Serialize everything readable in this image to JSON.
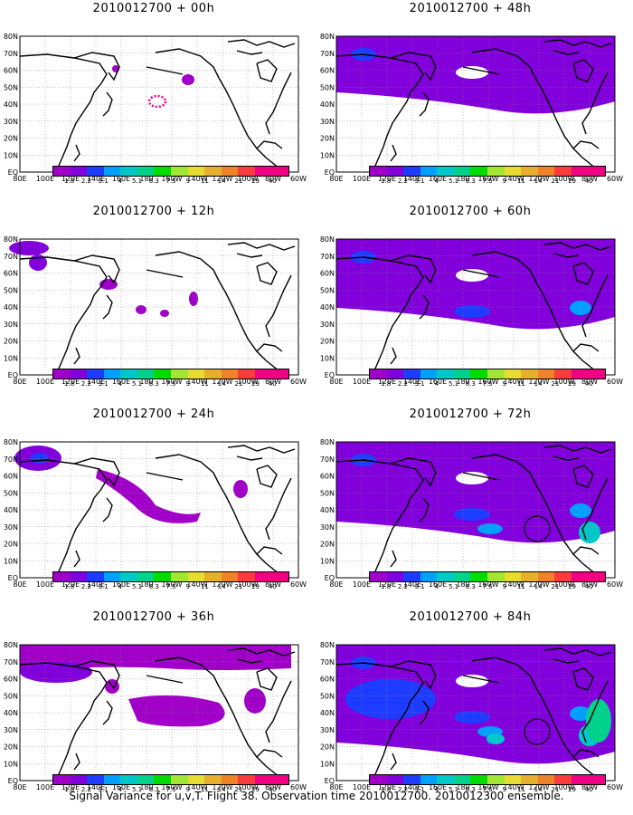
{
  "panels": [
    {
      "title": "2010012700 + 00h",
      "level": 0
    },
    {
      "title": "2010012700 + 12h",
      "level": 1
    },
    {
      "title": "2010012700 + 24h",
      "level": 2
    },
    {
      "title": "2010012700 + 36h",
      "level": 3
    },
    {
      "title": "2010012700 + 48h",
      "level": 4
    },
    {
      "title": "2010012700 + 60h",
      "level": 5
    },
    {
      "title": "2010012700 + 72h",
      "level": 6
    },
    {
      "title": "2010012700 + 84h",
      "level": 7
    }
  ],
  "lat_labels": [
    "80N",
    "70N",
    "60N",
    "50N",
    "40N",
    "30N",
    "20N",
    "10N",
    "EQ"
  ],
  "lon_labels": [
    "80E",
    "100E",
    "120E",
    "140E",
    "160E",
    "180",
    "160W",
    "140W",
    "120W",
    "100W",
    "80W",
    "60W"
  ],
  "colorbar": {
    "labels": [
      "1.8",
      "2.2",
      "3.1",
      "4",
      "5.1",
      "6.3",
      "7.5",
      "9",
      "11",
      "14",
      "21",
      "29",
      "40"
    ],
    "colors": [
      "#a000c8",
      "#8200dc",
      "#1e3cff",
      "#00a0ff",
      "#00c8c8",
      "#00d28c",
      "#00dc00",
      "#a0e632",
      "#e6dc32",
      "#e6af2d",
      "#f08228",
      "#fa3c3c",
      "#f00082"
    ]
  },
  "caption": "Signal Variance for u,v,T. Flight 38. Observation time 2010012700. 2010012300 ensemble."
}
